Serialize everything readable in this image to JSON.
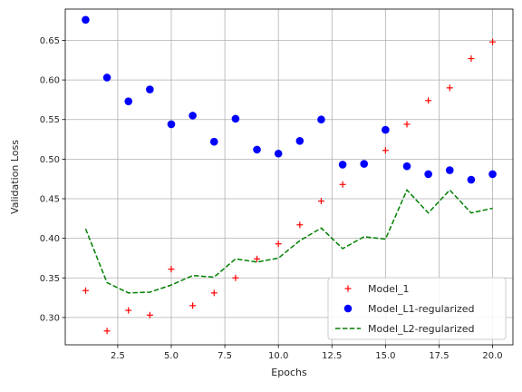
{
  "chart_data": {
    "type": "line",
    "xlabel": "Epochs",
    "ylabel": "Validation Loss",
    "xlim": [
      0.05,
      20.95
    ],
    "ylim": [
      0.2655,
      0.6895
    ],
    "xticks": [
      2.5,
      5.0,
      7.5,
      10.0,
      12.5,
      15.0,
      17.5,
      20.0
    ],
    "xtick_labels": [
      "2.5",
      "5.0",
      "7.5",
      "10.0",
      "12.5",
      "15.0",
      "17.5",
      "20.0"
    ],
    "yticks": [
      0.3,
      0.35,
      0.4,
      0.45,
      0.5,
      0.55,
      0.6,
      0.65
    ],
    "ytick_labels": [
      "0.30",
      "0.35",
      "0.40",
      "0.45",
      "0.50",
      "0.55",
      "0.60",
      "0.65"
    ],
    "grid": true,
    "legend_position": "bottom-right",
    "x": [
      1,
      2,
      3,
      4,
      5,
      6,
      7,
      8,
      9,
      10,
      11,
      12,
      13,
      14,
      15,
      16,
      17,
      18,
      19,
      20
    ],
    "series": [
      {
        "name": "Model_1",
        "style": "plus-markers",
        "color": "#ff0000",
        "values": [
          0.334,
          0.283,
          0.309,
          0.303,
          0.361,
          0.315,
          0.331,
          0.35,
          0.374,
          0.393,
          0.417,
          0.447,
          0.468,
          0.494,
          0.511,
          0.544,
          0.574,
          0.59,
          0.627,
          0.648
        ]
      },
      {
        "name": "Model_L1-regularized",
        "style": "circle-markers",
        "color": "#0000ff",
        "values": [
          0.676,
          0.603,
          0.573,
          0.588,
          0.544,
          0.555,
          0.522,
          0.551,
          0.512,
          0.507,
          0.523,
          0.55,
          0.493,
          0.494,
          0.537,
          0.491,
          0.481,
          0.486,
          0.474,
          0.481
        ]
      },
      {
        "name": "Model_L2-regularized",
        "style": "dashed-line",
        "color": "#008000",
        "values": [
          0.412,
          0.344,
          0.331,
          0.332,
          0.341,
          0.353,
          0.351,
          0.374,
          0.37,
          0.375,
          0.397,
          0.413,
          0.387,
          0.402,
          0.399,
          0.461,
          0.432,
          0.461,
          0.432,
          0.438
        ]
      }
    ]
  }
}
